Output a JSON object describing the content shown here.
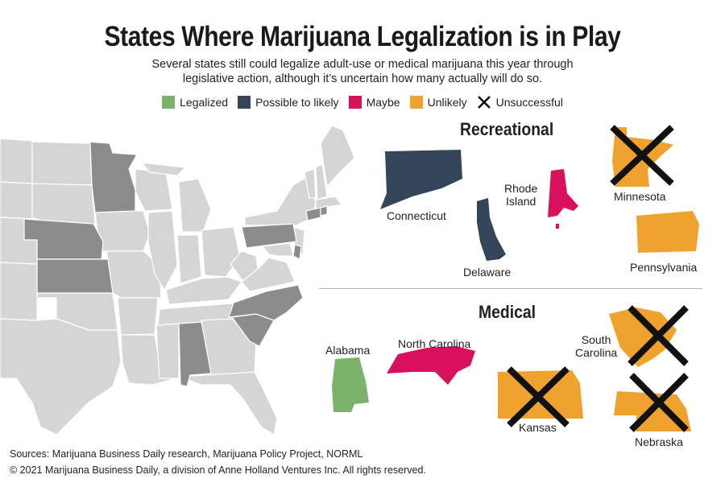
{
  "title": "States Where Marijuana Legalization is in Play",
  "subtitle_line1": "Several states still could legalize adult-use or medical marijuana this year through",
  "subtitle_line2": "legislative action, although it’s uncertain how many actually will do so.",
  "legend": [
    {
      "label": "Legalized",
      "color": "#7cb36a"
    },
    {
      "label": "Possible to likely",
      "color": "#344559"
    },
    {
      "label": "Maybe",
      "color": "#d9105c"
    },
    {
      "label": "Unlikely",
      "color": "#f0a22e"
    },
    {
      "label": "Unsuccessful",
      "icon": "x-icon"
    }
  ],
  "recreational": {
    "heading": "Recreational",
    "states": [
      {
        "name": "Connecticut",
        "status": "Possible to likely",
        "unsuccessful": false
      },
      {
        "name": "Delaware",
        "status": "Possible to likely",
        "unsuccessful": false
      },
      {
        "name": "Rhode Island",
        "line1": "Rhode",
        "line2": "Island",
        "status": "Maybe",
        "unsuccessful": false
      },
      {
        "name": "Minnesota",
        "status": "Unlikely",
        "unsuccessful": true
      },
      {
        "name": "Pennsylvania",
        "status": "Unlikely",
        "unsuccessful": false
      }
    ]
  },
  "medical": {
    "heading": "Medical",
    "states": [
      {
        "name": "Alabama",
        "status": "Legalized",
        "unsuccessful": false
      },
      {
        "name": "North Carolina",
        "status": "Maybe",
        "unsuccessful": false
      },
      {
        "name": "South Carolina",
        "line1": "South",
        "line2": "Carolina",
        "status": "Unlikely",
        "unsuccessful": true
      },
      {
        "name": "Kansas",
        "status": "Unlikely",
        "unsuccessful": true
      },
      {
        "name": "Nebraska",
        "status": "Unlikely",
        "unsuccessful": true
      }
    ]
  },
  "colors": {
    "map_base": "#d5d5d5",
    "map_highlight": "#8c8c8c",
    "map_border": "#ffffff"
  },
  "sources": "Sources: Marijuana Business Daily research, Marijuana Policy Project, NORML",
  "copyright": "© 2021 Marijuana Business Daily, a division of Anne Holland Ventures Inc. All rights reserved."
}
